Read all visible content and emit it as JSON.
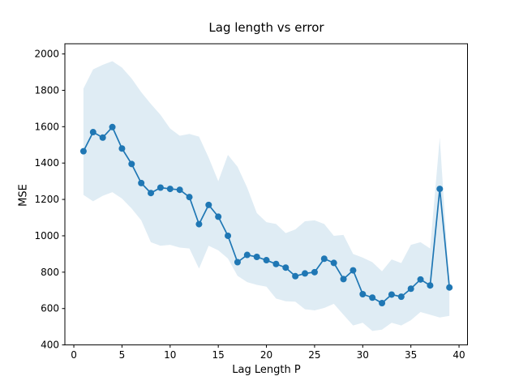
{
  "figure": {
    "title": "Lag length vs error",
    "xlabel": "Lag Length P",
    "ylabel": "MSE"
  },
  "chart_data": {
    "type": "line",
    "title": "Lag length vs error",
    "xlabel": "Lag Length P",
    "ylabel": "MSE",
    "x": [
      1,
      2,
      3,
      4,
      5,
      6,
      7,
      8,
      9,
      10,
      11,
      12,
      13,
      14,
      15,
      16,
      17,
      18,
      19,
      20,
      21,
      22,
      23,
      24,
      25,
      26,
      27,
      28,
      29,
      30,
      31,
      32,
      33,
      34,
      35,
      36,
      37,
      38,
      39
    ],
    "series": [
      {
        "name": "MSE",
        "color": "#1f77b4",
        "marker": "circle",
        "values": [
          1465,
          1570,
          1540,
          1598,
          1480,
          1395,
          1290,
          1235,
          1265,
          1258,
          1253,
          1213,
          1064,
          1170,
          1105,
          1000,
          855,
          895,
          884,
          866,
          845,
          825,
          778,
          793,
          800,
          874,
          851,
          762,
          810,
          679,
          660,
          630,
          677,
          665,
          709,
          760,
          727,
          1258,
          716
        ]
      }
    ],
    "band": {
      "name": "confidence band",
      "fill_color": "#1f77b4",
      "fill_opacity": 0.14,
      "upper": [
        1810,
        1915,
        1940,
        1960,
        1925,
        1865,
        1790,
        1725,
        1665,
        1590,
        1550,
        1560,
        1545,
        1430,
        1300,
        1445,
        1380,
        1265,
        1125,
        1075,
        1065,
        1015,
        1035,
        1080,
        1085,
        1065,
        1000,
        1005,
        900,
        880,
        855,
        805,
        870,
        850,
        950,
        965,
        930,
        1540,
        720
      ],
      "lower": [
        1225,
        1190,
        1220,
        1240,
        1205,
        1150,
        1085,
        965,
        945,
        950,
        935,
        930,
        820,
        945,
        920,
        875,
        780,
        745,
        730,
        720,
        655,
        640,
        638,
        596,
        590,
        603,
        626,
        566,
        507,
        522,
        477,
        484,
        522,
        507,
        536,
        581,
        566,
        551,
        560
      ]
    },
    "xticks": [
      0,
      5,
      10,
      15,
      20,
      25,
      30,
      35,
      40
    ],
    "yticks": [
      400,
      600,
      800,
      1000,
      1200,
      1400,
      1600,
      1800,
      2000
    ],
    "xlim": [
      -0.93,
      40.88
    ],
    "ylim": [
      400,
      2056
    ],
    "grid": false,
    "legend_position": "none"
  }
}
